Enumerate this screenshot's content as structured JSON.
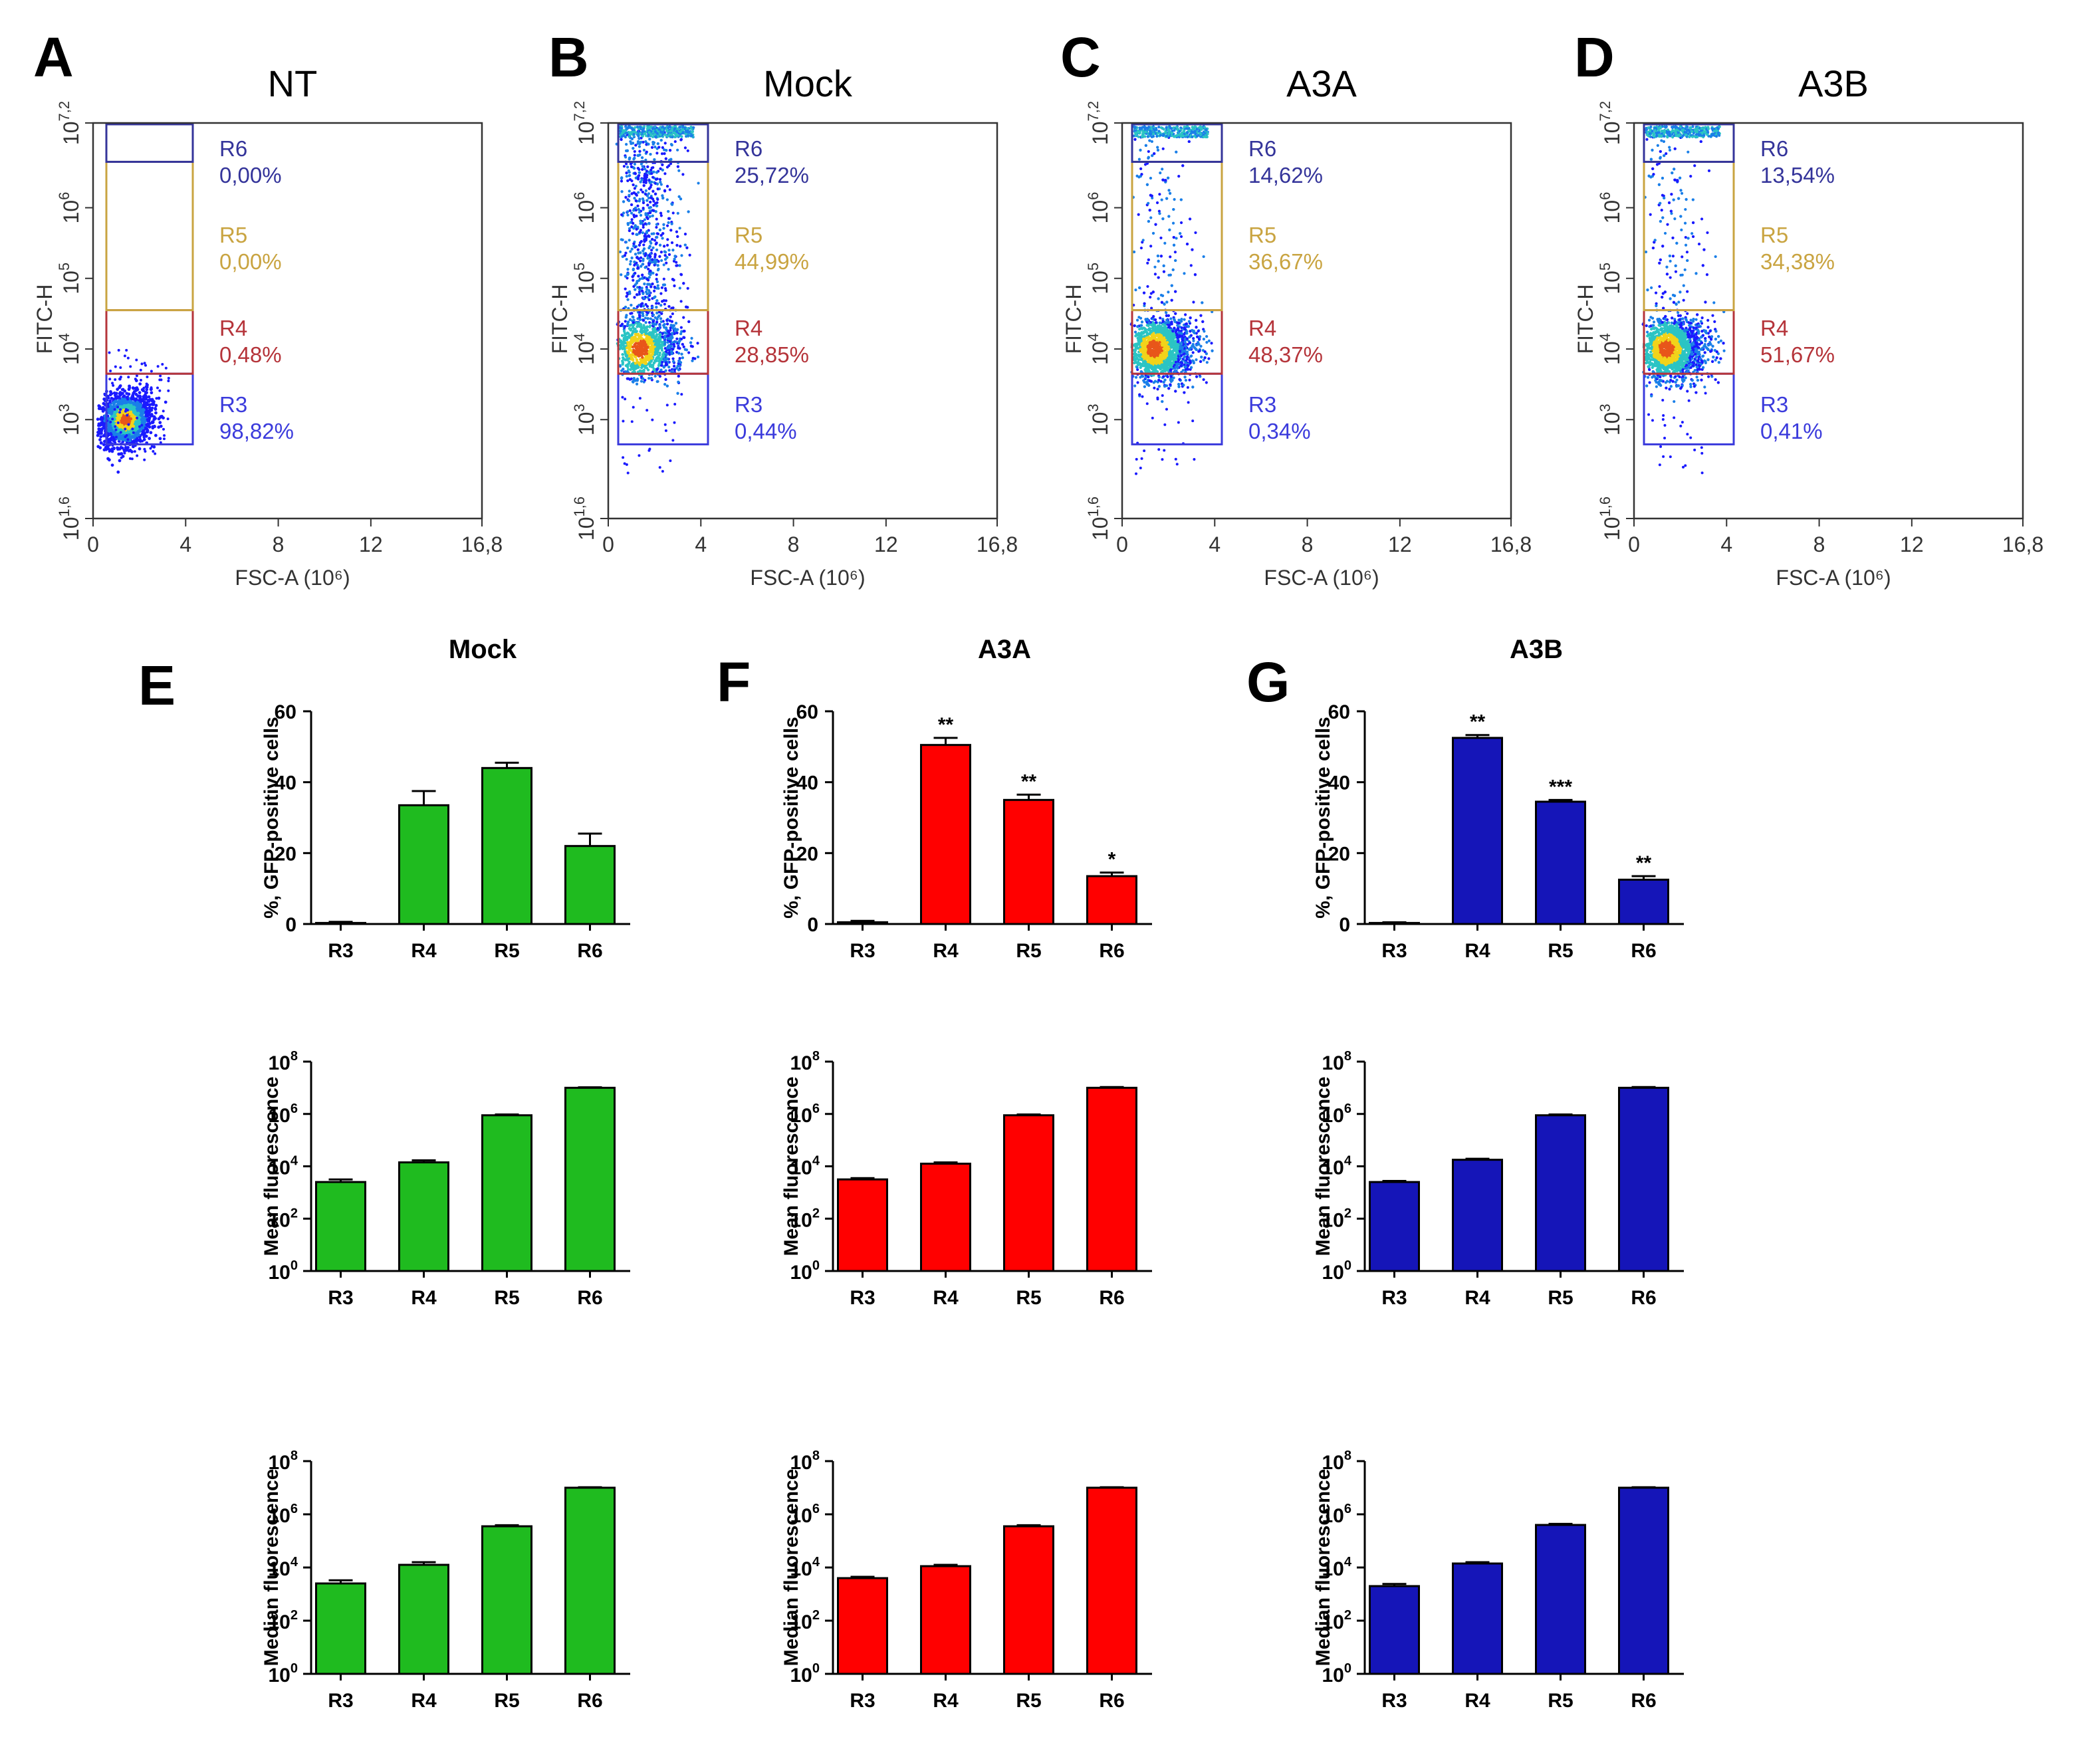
{
  "colors": {
    "R3": "#3b3bdc",
    "R4": "#b5343a",
    "R5": "#c9a441",
    "R6": "#34349a",
    "mock": "#1fbb1f",
    "a3a": "#ff0000",
    "a3b": "#1515b8"
  },
  "chart_data": [
    {
      "type": "scatter",
      "panel": "A",
      "title": "NT",
      "xlabel": "FSC-A (10⁶)",
      "ylabel": "FITC-H",
      "xlim": [
        0,
        16.8
      ],
      "xticks": [
        "0",
        "4",
        "8",
        "12",
        "16,8"
      ],
      "ylim_log10": [
        1.6,
        7.2
      ],
      "yticks": [
        {
          "base": "10",
          "exp": "1,6"
        },
        {
          "base": "10",
          "exp": "3"
        },
        {
          "base": "10",
          "exp": "4"
        },
        {
          "base": "10",
          "exp": "5"
        },
        {
          "base": "10",
          "exp": "6"
        },
        {
          "base": "10",
          "exp": "7,2"
        }
      ],
      "gates": [
        {
          "name": "R6",
          "value": "0,00%"
        },
        {
          "name": "R5",
          "value": "0,00%"
        },
        {
          "name": "R4",
          "value": "0,48%"
        },
        {
          "name": "R3",
          "value": "98,82%"
        }
      ]
    },
    {
      "type": "scatter",
      "panel": "B",
      "title": "Mock",
      "xlabel": "FSC-A (10⁶)",
      "ylabel": "FITC-H",
      "xlim": [
        0,
        16.8
      ],
      "xticks": [
        "0",
        "4",
        "8",
        "12",
        "16,8"
      ],
      "ylim_log10": [
        1.6,
        7.2
      ],
      "yticks": [
        {
          "base": "10",
          "exp": "1,6"
        },
        {
          "base": "10",
          "exp": "3"
        },
        {
          "base": "10",
          "exp": "4"
        },
        {
          "base": "10",
          "exp": "5"
        },
        {
          "base": "10",
          "exp": "6"
        },
        {
          "base": "10",
          "exp": "7,2"
        }
      ],
      "gates": [
        {
          "name": "R6",
          "value": "25,72%"
        },
        {
          "name": "R5",
          "value": "44,99%"
        },
        {
          "name": "R4",
          "value": "28,85%"
        },
        {
          "name": "R3",
          "value": "0,44%"
        }
      ]
    },
    {
      "type": "scatter",
      "panel": "C",
      "title": "A3A",
      "xlabel": "FSC-A (10⁶)",
      "ylabel": "FITC-H",
      "xlim": [
        0,
        16.8
      ],
      "xticks": [
        "0",
        "4",
        "8",
        "12",
        "16,8"
      ],
      "ylim_log10": [
        1.6,
        7.2
      ],
      "yticks": [
        {
          "base": "10",
          "exp": "1,6"
        },
        {
          "base": "10",
          "exp": "3"
        },
        {
          "base": "10",
          "exp": "4"
        },
        {
          "base": "10",
          "exp": "5"
        },
        {
          "base": "10",
          "exp": "6"
        },
        {
          "base": "10",
          "exp": "7,2"
        }
      ],
      "gates": [
        {
          "name": "R6",
          "value": "14,62%"
        },
        {
          "name": "R5",
          "value": "36,67%"
        },
        {
          "name": "R4",
          "value": "48,37%"
        },
        {
          "name": "R3",
          "value": "0,34%"
        }
      ]
    },
    {
      "type": "scatter",
      "panel": "D",
      "title": "A3B",
      "xlabel": "FSC-A (10⁶)",
      "ylabel": "FITC-H",
      "xlim": [
        0,
        16.8
      ],
      "xticks": [
        "0",
        "4",
        "8",
        "12",
        "16,8"
      ],
      "ylim_log10": [
        1.6,
        7.2
      ],
      "yticks": [
        {
          "base": "10",
          "exp": "1,6"
        },
        {
          "base": "10",
          "exp": "3"
        },
        {
          "base": "10",
          "exp": "4"
        },
        {
          "base": "10",
          "exp": "5"
        },
        {
          "base": "10",
          "exp": "6"
        },
        {
          "base": "10",
          "exp": "7,2"
        }
      ],
      "gates": [
        {
          "name": "R6",
          "value": "13,54%"
        },
        {
          "name": "R5",
          "value": "34,38%"
        },
        {
          "name": "R4",
          "value": "51,67%"
        },
        {
          "name": "R3",
          "value": "0,41%"
        }
      ]
    },
    {
      "type": "bar",
      "panel": "E",
      "group": "mock",
      "title": "Mock",
      "ylabel": "%, GFP-positive cells",
      "categories": [
        "R3",
        "R4",
        "R5",
        "R6"
      ],
      "values": [
        0.3,
        33.5,
        44,
        22
      ],
      "errors": [
        0.3,
        4,
        1.5,
        3.5
      ],
      "ylim": [
        0,
        60
      ],
      "yticks": [
        "0",
        "20",
        "40",
        "60"
      ],
      "annotations": [
        "",
        "",
        "",
        ""
      ]
    },
    {
      "type": "bar",
      "panel": "F",
      "group": "a3a",
      "title": "A3A",
      "ylabel": "%, GFP-positive cells",
      "categories": [
        "R3",
        "R4",
        "R5",
        "R6"
      ],
      "values": [
        0.5,
        50.5,
        35,
        13.5
      ],
      "errors": [
        0.4,
        2,
        1.5,
        1
      ],
      "ylim": [
        0,
        60
      ],
      "yticks": [
        "0",
        "20",
        "40",
        "60"
      ],
      "annotations": [
        "",
        "**",
        "**",
        "*"
      ]
    },
    {
      "type": "bar",
      "panel": "G",
      "group": "a3b",
      "title": "A3B",
      "ylabel": "%, GFP-positive cells",
      "categories": [
        "R3",
        "R4",
        "R5",
        "R6"
      ],
      "values": [
        0.3,
        52.5,
        34.5,
        12.5
      ],
      "errors": [
        0.2,
        0.8,
        0.5,
        1
      ],
      "ylim": [
        0,
        60
      ],
      "yticks": [
        "0",
        "20",
        "40",
        "60"
      ],
      "annotations": [
        "",
        "**",
        "***",
        "**"
      ]
    },
    {
      "type": "bar",
      "panel": "E-mean",
      "group": "mock",
      "scale": "log",
      "ylabel": "Mean fluorescence",
      "categories": [
        "R3",
        "R4",
        "R5",
        "R6"
      ],
      "values_log10": [
        3.4,
        4.15,
        5.95,
        7.0
      ],
      "errors_log10": [
        0.1,
        0.08,
        0.03,
        0.02
      ],
      "ylim_log10": [
        0,
        8
      ],
      "yticks": [
        {
          "base": "10",
          "exp": "0"
        },
        {
          "base": "10",
          "exp": "2"
        },
        {
          "base": "10",
          "exp": "4"
        },
        {
          "base": "10",
          "exp": "6"
        },
        {
          "base": "10",
          "exp": "8"
        }
      ]
    },
    {
      "type": "bar",
      "panel": "F-mean",
      "group": "a3a",
      "scale": "log",
      "ylabel": "Mean fluorescence",
      "categories": [
        "R3",
        "R4",
        "R5",
        "R6"
      ],
      "values_log10": [
        3.5,
        4.1,
        5.95,
        7.0
      ],
      "errors_log10": [
        0.05,
        0.05,
        0.03,
        0.03
      ],
      "ylim_log10": [
        0,
        8
      ],
      "yticks": [
        {
          "base": "10",
          "exp": "0"
        },
        {
          "base": "10",
          "exp": "2"
        },
        {
          "base": "10",
          "exp": "4"
        },
        {
          "base": "10",
          "exp": "6"
        },
        {
          "base": "10",
          "exp": "8"
        }
      ]
    },
    {
      "type": "bar",
      "panel": "G-mean",
      "group": "a3b",
      "scale": "log",
      "ylabel": "Mean fluorescence",
      "categories": [
        "R3",
        "R4",
        "R5",
        "R6"
      ],
      "values_log10": [
        3.4,
        4.25,
        5.95,
        7.0
      ],
      "errors_log10": [
        0.04,
        0.04,
        0.03,
        0.03
      ],
      "ylim_log10": [
        0,
        8
      ],
      "yticks": [
        {
          "base": "10",
          "exp": "0"
        },
        {
          "base": "10",
          "exp": "2"
        },
        {
          "base": "10",
          "exp": "4"
        },
        {
          "base": "10",
          "exp": "6"
        },
        {
          "base": "10",
          "exp": "8"
        }
      ]
    },
    {
      "type": "bar",
      "panel": "E-median",
      "group": "mock",
      "scale": "log",
      "ylabel": "Median fluorescence",
      "categories": [
        "R3",
        "R4",
        "R5",
        "R6"
      ],
      "values_log10": [
        3.4,
        4.1,
        5.55,
        7.0
      ],
      "errors_log10": [
        0.12,
        0.1,
        0.04,
        0.02
      ],
      "ylim_log10": [
        0,
        8
      ],
      "yticks": [
        {
          "base": "10",
          "exp": "0"
        },
        {
          "base": "10",
          "exp": "2"
        },
        {
          "base": "10",
          "exp": "4"
        },
        {
          "base": "10",
          "exp": "6"
        },
        {
          "base": "10",
          "exp": "8"
        }
      ]
    },
    {
      "type": "bar",
      "panel": "F-median",
      "group": "a3a",
      "scale": "log",
      "ylabel": "Median fluorescence",
      "categories": [
        "R3",
        "R4",
        "R5",
        "R6"
      ],
      "values_log10": [
        3.6,
        4.05,
        5.55,
        7.0
      ],
      "errors_log10": [
        0.05,
        0.05,
        0.04,
        0.02
      ],
      "ylim_log10": [
        0,
        8
      ],
      "yticks": [
        {
          "base": "10",
          "exp": "0"
        },
        {
          "base": "10",
          "exp": "2"
        },
        {
          "base": "10",
          "exp": "4"
        },
        {
          "base": "10",
          "exp": "6"
        },
        {
          "base": "10",
          "exp": "8"
        }
      ]
    },
    {
      "type": "bar",
      "panel": "G-median",
      "group": "a3b",
      "scale": "log",
      "ylabel": "Median fluorescence",
      "categories": [
        "R3",
        "R4",
        "R5",
        "R6"
      ],
      "values_log10": [
        3.3,
        4.15,
        5.6,
        7.0
      ],
      "errors_log10": [
        0.08,
        0.05,
        0.04,
        0.02
      ],
      "ylim_log10": [
        0,
        8
      ],
      "yticks": [
        {
          "base": "10",
          "exp": "0"
        },
        {
          "base": "10",
          "exp": "2"
        },
        {
          "base": "10",
          "exp": "4"
        },
        {
          "base": "10",
          "exp": "6"
        },
        {
          "base": "10",
          "exp": "8"
        }
      ]
    }
  ]
}
